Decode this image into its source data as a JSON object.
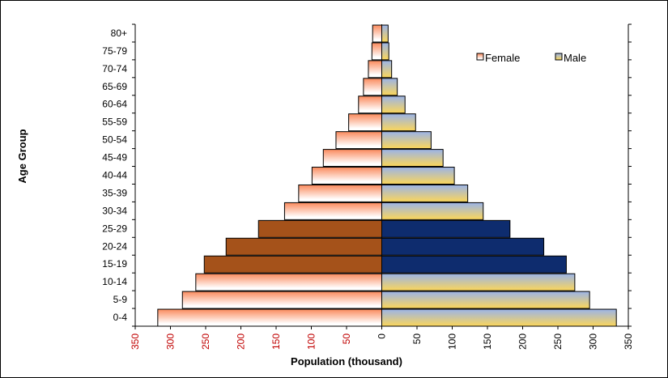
{
  "chart_data": {
    "type": "bar",
    "orientation": "horizontal",
    "layout": "population-pyramid",
    "title": "",
    "xlabel": "Population (thousand)",
    "ylabel": "Age Group",
    "xlim": [
      -350,
      350
    ],
    "x_ticks": [
      350,
      300,
      250,
      200,
      150,
      100,
      50,
      0,
      50,
      100,
      150,
      200,
      250,
      300,
      350
    ],
    "categories": [
      "0-4",
      "5-9",
      "10-14",
      "15-19",
      "20-24",
      "25-29",
      "30-34",
      "35-39",
      "40-44",
      "45-49",
      "50-54",
      "55-59",
      "60-64",
      "65-69",
      "70-74",
      "75-79",
      "80+"
    ],
    "series": [
      {
        "name": "Female",
        "side": "left",
        "values": [
          318,
          283,
          264,
          252,
          221,
          175,
          138,
          118,
          99,
          83,
          65,
          47,
          33,
          26,
          19,
          14,
          13
        ],
        "highlighted_categories": [
          "15-19",
          "20-24",
          "25-29"
        ],
        "gradient_colors": [
          "#fa8a5c",
          "#ffffff"
        ],
        "highlight_color": "#a5521a"
      },
      {
        "name": "Male",
        "side": "right",
        "values": [
          333,
          295,
          274,
          262,
          230,
          182,
          144,
          122,
          103,
          87,
          70,
          48,
          33,
          22,
          14,
          10,
          9
        ],
        "highlighted_categories": [
          "15-19",
          "20-24",
          "25-29"
        ],
        "gradient_colors": [
          "#9bb4e8",
          "#fbd65a"
        ],
        "highlight_color": "#0e2c6e"
      }
    ],
    "legend": {
      "position": "top-right",
      "items": [
        "Female",
        "Male"
      ]
    },
    "grid": false
  }
}
